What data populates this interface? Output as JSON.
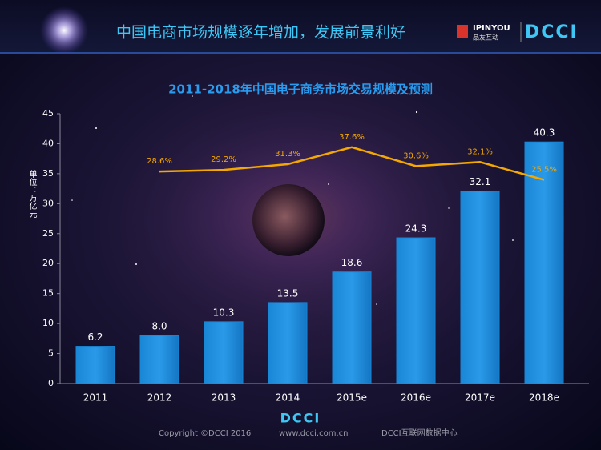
{
  "header": {
    "title": "中国电商市场规模逐年增加，发展前景利好",
    "logo_brand": "IPINYOU",
    "logo_brand_cn": "品友互动",
    "logo_partner": "DCCI"
  },
  "chart_data": {
    "type": "bar",
    "title": "2011-2018年中国电子商务市场交易规模及预测",
    "y_label": "单位：万亿元",
    "categories": [
      "2011",
      "2012",
      "2013",
      "2014",
      "2015e",
      "2016e",
      "2017e",
      "2018e"
    ],
    "values": [
      6.2,
      8.0,
      10.3,
      13.5,
      18.6,
      24.3,
      32.1,
      40.3
    ],
    "value_labels": [
      "6.2",
      "8.0",
      "10.3",
      "13.5",
      "18.6",
      "24.3",
      "32.1",
      "40.3"
    ],
    "color": "#1a86d6",
    "ylim": [
      0,
      45
    ],
    "yticks": [
      0,
      5,
      10,
      15,
      20,
      25,
      30,
      35,
      40,
      45
    ],
    "line": {
      "type": "line",
      "axis": "y2",
      "color": "#f5a800",
      "values": [
        null,
        28.6,
        29.2,
        31.3,
        37.6,
        30.6,
        32.1,
        25.5
      ],
      "value_labels": [
        null,
        "28.6%",
        "29.2%",
        "31.3%",
        "37.6%",
        "30.6%",
        "32.1%",
        "25.5%"
      ]
    },
    "y2lim": [
      -50,
      50
    ]
  },
  "footer": {
    "logo": "DCCI",
    "copyright": "Copyright ©DCCI 2016",
    "url": "www.dcci.com.cn",
    "org": "DCCI互联网数据中心"
  }
}
